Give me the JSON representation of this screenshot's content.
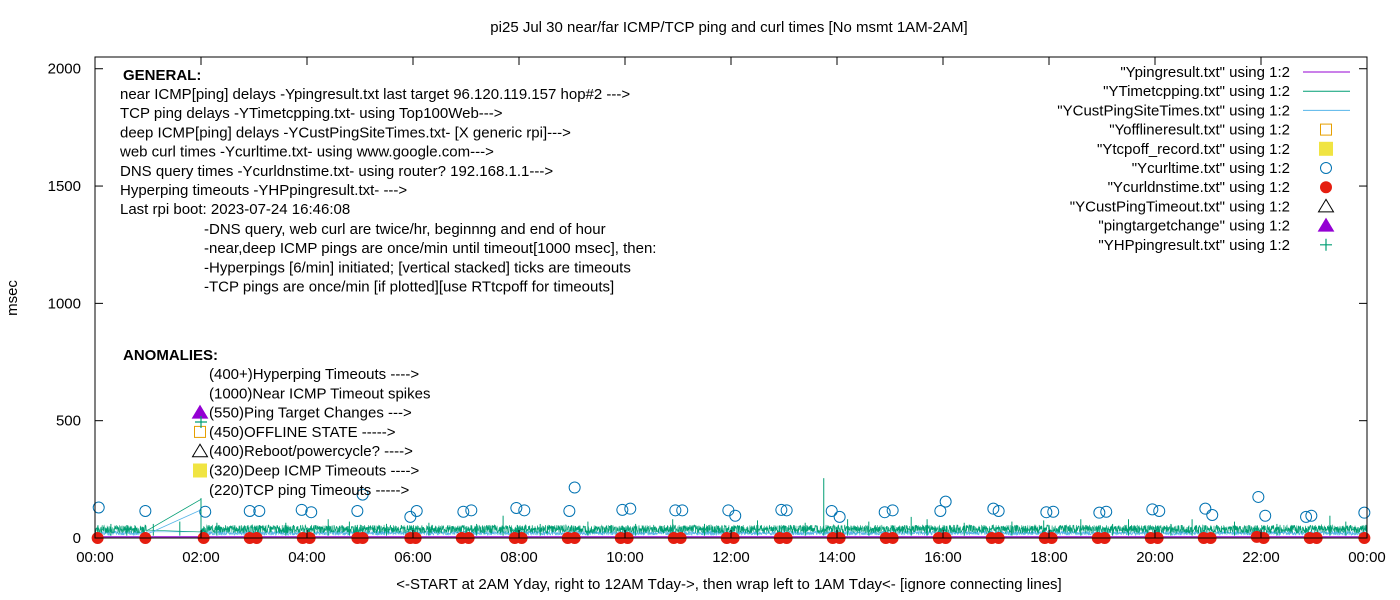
{
  "chart_data": {
    "type": "scatter",
    "title": "pi25 Jul 30  near/far ICMP/TCP ping and curl times [No msmt 1AM-2AM]",
    "xlabel": "<-START at 2AM Yday, right to 12AM Tday->, then wrap left to 1AM Tday<- [ignore connecting lines]",
    "ylabel": "msec",
    "xlim": [
      0,
      24
    ],
    "ylim": [
      0,
      2050
    ],
    "x_tick_labels": [
      "00:00",
      "02:00",
      "04:00",
      "06:00",
      "08:00",
      "10:00",
      "12:00",
      "14:00",
      "16:00",
      "18:00",
      "20:00",
      "22:00",
      "00:00"
    ],
    "y_ticks": [
      0,
      500,
      1000,
      1500,
      2000
    ],
    "grid": false,
    "legend_position": "top-right",
    "legend": [
      "\"Ypingresult.txt\" using 1:2",
      "\"YTimetcpping.txt\" using 1:2",
      "\"YCustPingSiteTimes.txt\" using 1:2",
      "\"Yofflineresult.txt\" using 1:2",
      "\"Ytcpoff_record.txt\" using 1:2",
      "\"Ycurltime.txt\" using 1:2",
      "\"Ycurldnstime.txt\" using 1:2",
      "\"YCustPingTimeout.txt\" using 1:2",
      "\"pingtargetchange\" using 1:2",
      "\"YHPpingresult.txt\" using 1:2"
    ],
    "legend_styles": [
      {
        "kind": "line",
        "color": "#9400d3"
      },
      {
        "kind": "line",
        "color": "#009e73"
      },
      {
        "kind": "line",
        "color": "#56b4e9"
      },
      {
        "kind": "square-open",
        "color": "#e69f00"
      },
      {
        "kind": "square-filled",
        "color": "#f0e442"
      },
      {
        "kind": "circle-open",
        "color": "#0072b2"
      },
      {
        "kind": "circle-filled",
        "color": "#e51e10"
      },
      {
        "kind": "triangle-open",
        "color": "#000000"
      },
      {
        "kind": "triangle-filled",
        "color": "#9400d3"
      },
      {
        "kind": "plus",
        "color": "#009e73"
      }
    ],
    "general_heading": "GENERAL:",
    "general_lines": [
      "near ICMP[ping] delays -Ypingresult.txt last target 96.120.119.157 hop#2 --->",
      "TCP ping delays -YTimetcpping.txt- using Top100Web--->",
      "deep ICMP[ping] delays -YCustPingSiteTimes.txt- [X generic rpi]--->",
      "web curl times -Ycurltime.txt- using www.google.com--->",
      "DNS query times -Ycurldnstime.txt- using router? 192.168.1.1--->",
      "Hyperping timeouts -YHPpingresult.txt- --->",
      "Last rpi boot: 2023-07-24 16:46:08"
    ],
    "general_notes": [
      "-DNS query, web curl are twice/hr, beginnng and end of hour",
      "-near,deep ICMP pings are once/min until timeout[1000 msec], then:",
      "  -Hyperpings [6/min] initiated; [vertical stacked] ticks are timeouts",
      "-TCP pings are once/min [if plotted][use RTtcpoff for timeouts]"
    ],
    "anomalies_heading": "ANOMALIES:",
    "anomalies": [
      {
        "text": "(400+)Hyperping Timeouts ---->",
        "marker": "none"
      },
      {
        "text": "(1000)Near ICMP Timeout spikes",
        "marker": "none"
      },
      {
        "text": "(550)Ping Target Changes --->",
        "marker": "triangle-filled"
      },
      {
        "text": "(450)OFFLINE STATE ----->",
        "marker": "square-open"
      },
      {
        "text": "(400)Reboot/powercycle? ---->",
        "marker": "triangle-open"
      },
      {
        "text": "(320)Deep ICMP Timeouts ---->",
        "marker": "square-filled"
      },
      {
        "text": "(220)TCP ping Timeouts ----->",
        "marker": "none"
      }
    ],
    "series": [
      {
        "name": "\"Ycurltime.txt\" using 1:2",
        "marker": "circle-open",
        "points": [
          [
            0.07,
            130
          ],
          [
            0.95,
            115
          ],
          [
            2.08,
            112
          ],
          [
            2.92,
            115
          ],
          [
            3.1,
            115
          ],
          [
            3.9,
            120
          ],
          [
            4.08,
            110
          ],
          [
            4.95,
            115
          ],
          [
            5.05,
            185
          ],
          [
            5.95,
            90
          ],
          [
            6.07,
            115
          ],
          [
            6.95,
            112
          ],
          [
            7.1,
            118
          ],
          [
            7.95,
            128
          ],
          [
            8.1,
            118
          ],
          [
            8.95,
            115
          ],
          [
            9.05,
            215
          ],
          [
            9.95,
            120
          ],
          [
            10.1,
            125
          ],
          [
            10.95,
            118
          ],
          [
            11.08,
            118
          ],
          [
            11.95,
            118
          ],
          [
            12.08,
            95
          ],
          [
            12.95,
            120
          ],
          [
            13.05,
            118
          ],
          [
            13.9,
            115
          ],
          [
            14.05,
            90
          ],
          [
            14.9,
            110
          ],
          [
            15.05,
            118
          ],
          [
            15.95,
            115
          ],
          [
            16.05,
            155
          ],
          [
            16.95,
            125
          ],
          [
            17.05,
            115
          ],
          [
            17.95,
            110
          ],
          [
            18.08,
            112
          ],
          [
            18.95,
            108
          ],
          [
            19.08,
            112
          ],
          [
            19.95,
            122
          ],
          [
            20.08,
            115
          ],
          [
            20.95,
            125
          ],
          [
            21.08,
            98
          ],
          [
            21.95,
            175
          ],
          [
            22.08,
            95
          ],
          [
            22.85,
            90
          ],
          [
            22.95,
            95
          ],
          [
            23.95,
            108
          ]
        ]
      },
      {
        "name": "\"Ycurldnstime.txt\" using 1:2",
        "marker": "circle-filled",
        "points": [
          [
            0.05,
            0
          ],
          [
            0.95,
            0
          ],
          [
            2.05,
            0
          ],
          [
            2.92,
            0
          ],
          [
            3.05,
            0
          ],
          [
            3.92,
            0
          ],
          [
            4.05,
            0
          ],
          [
            4.95,
            0
          ],
          [
            5.05,
            0
          ],
          [
            5.95,
            0
          ],
          [
            6.05,
            0
          ],
          [
            6.92,
            0
          ],
          [
            7.05,
            0
          ],
          [
            7.92,
            0
          ],
          [
            8.05,
            0
          ],
          [
            8.92,
            0
          ],
          [
            9.05,
            0
          ],
          [
            9.92,
            0
          ],
          [
            10.05,
            0
          ],
          [
            10.92,
            0
          ],
          [
            11.05,
            0
          ],
          [
            11.92,
            0
          ],
          [
            12.05,
            0
          ],
          [
            12.92,
            0
          ],
          [
            13.05,
            0
          ],
          [
            13.92,
            0
          ],
          [
            14.05,
            0
          ],
          [
            14.92,
            0
          ],
          [
            15.05,
            0
          ],
          [
            15.92,
            0
          ],
          [
            16.05,
            0
          ],
          [
            16.92,
            0
          ],
          [
            17.05,
            0
          ],
          [
            17.92,
            0
          ],
          [
            18.05,
            0
          ],
          [
            18.92,
            0
          ],
          [
            19.05,
            0
          ],
          [
            19.92,
            0
          ],
          [
            20.05,
            0
          ],
          [
            20.92,
            0
          ],
          [
            21.05,
            0
          ],
          [
            21.92,
            5
          ],
          [
            22.05,
            0
          ],
          [
            22.92,
            0
          ],
          [
            23.05,
            0
          ],
          [
            23.95,
            0
          ]
        ]
      },
      {
        "name": "\"YTimetcpping.txt\" using 1:2",
        "marker": "line-noise",
        "baseline_msec": 40,
        "spikes": [
          [
            0.3,
            60
          ],
          [
            0.6,
            55
          ],
          [
            1.1,
            60
          ],
          [
            1.6,
            70
          ],
          [
            2.3,
            65
          ],
          [
            3.6,
            65
          ],
          [
            4.4,
            80
          ],
          [
            4.8,
            70
          ],
          [
            5.5,
            60
          ],
          [
            6.3,
            65
          ],
          [
            7.2,
            60
          ],
          [
            7.7,
            95
          ],
          [
            8.4,
            60
          ],
          [
            9.3,
            70
          ],
          [
            10.2,
            60
          ],
          [
            10.9,
            80
          ],
          [
            11.5,
            60
          ],
          [
            12.5,
            75
          ],
          [
            13.4,
            65
          ],
          [
            13.75,
            255
          ],
          [
            14.2,
            80
          ],
          [
            14.6,
            70
          ],
          [
            15.4,
            90
          ],
          [
            15.7,
            80
          ],
          [
            16.4,
            65
          ],
          [
            17.3,
            70
          ],
          [
            17.9,
            75
          ],
          [
            18.6,
            80
          ],
          [
            19.2,
            60
          ],
          [
            19.5,
            80
          ],
          [
            20.3,
            60
          ],
          [
            20.7,
            80
          ],
          [
            21.5,
            70
          ],
          [
            22.3,
            60
          ],
          [
            23.3,
            95
          ],
          [
            23.6,
            70
          ]
        ]
      }
    ]
  }
}
